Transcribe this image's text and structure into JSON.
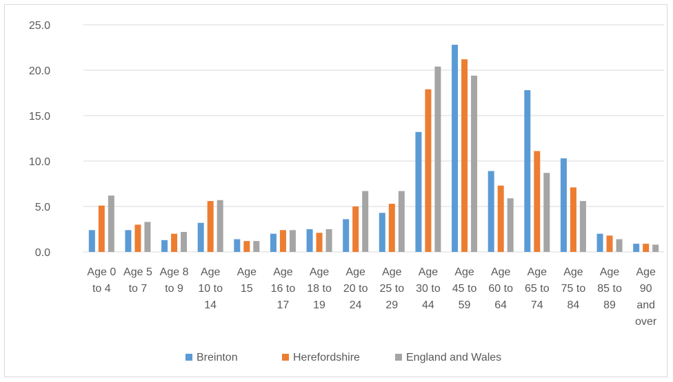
{
  "chart_data": {
    "type": "bar",
    "title": "",
    "xlabel": "",
    "ylabel": "",
    "ylim": [
      0,
      25
    ],
    "yticks": [
      "0.0",
      "5.0",
      "10.0",
      "15.0",
      "20.0",
      "25.0"
    ],
    "grid": true,
    "legend_position": "bottom",
    "categories": [
      [
        "Age 0",
        "to 4"
      ],
      [
        "Age 5",
        "to 7"
      ],
      [
        "Age 8",
        "to 9"
      ],
      [
        "Age",
        "10 to",
        "14"
      ],
      [
        "Age",
        "15"
      ],
      [
        "Age",
        "16 to",
        "17"
      ],
      [
        "Age",
        "18 to",
        "19"
      ],
      [
        "Age",
        "20 to",
        "24"
      ],
      [
        "Age",
        "25 to",
        "29"
      ],
      [
        "Age",
        "30 to",
        "44"
      ],
      [
        "Age",
        "45 to",
        "59"
      ],
      [
        "Age",
        "60 to",
        "64"
      ],
      [
        "Age",
        "65 to",
        "74"
      ],
      [
        "Age",
        "75 to",
        "84"
      ],
      [
        "Age",
        "85 to",
        "89"
      ],
      [
        "Age",
        "90",
        "and",
        "over"
      ]
    ],
    "series": [
      {
        "name": "Breinton",
        "color": "#5b9bd5",
        "values": [
          2.4,
          2.4,
          1.3,
          3.2,
          1.4,
          2.0,
          2.5,
          3.6,
          4.3,
          13.2,
          22.8,
          8.9,
          17.8,
          10.3,
          2.0,
          0.9
        ]
      },
      {
        "name": "Herefordshire",
        "color": "#ed7d31",
        "values": [
          5.1,
          3.0,
          2.0,
          5.6,
          1.2,
          2.4,
          2.1,
          5.0,
          5.3,
          17.9,
          21.2,
          7.3,
          11.1,
          7.1,
          1.8,
          0.9
        ]
      },
      {
        "name": "England and Wales",
        "color": "#a5a5a5",
        "values": [
          6.2,
          3.3,
          2.2,
          5.7,
          1.2,
          2.4,
          2.5,
          6.7,
          6.7,
          20.4,
          19.4,
          5.9,
          8.7,
          5.6,
          1.4,
          0.8
        ]
      }
    ]
  }
}
